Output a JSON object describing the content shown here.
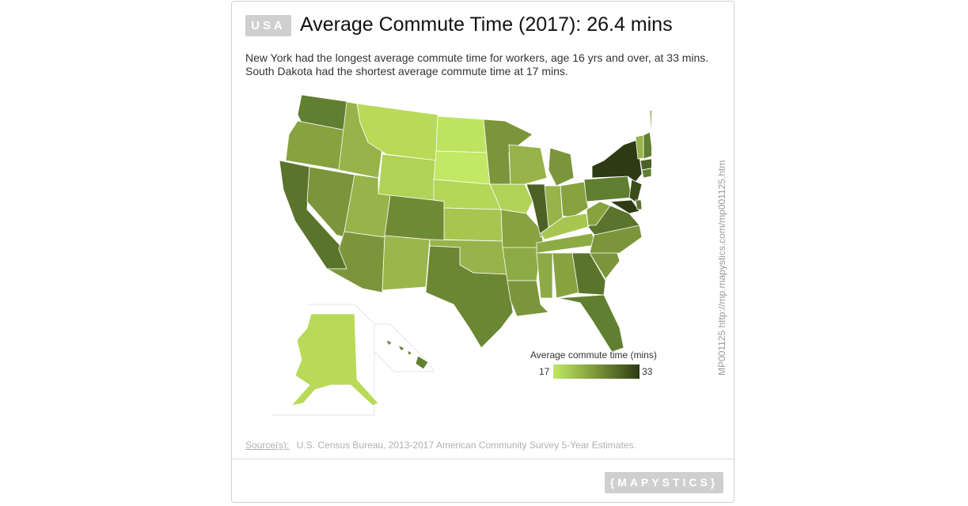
{
  "badge": "USA",
  "title": "Average Commute Time (2017): 26.4 mins",
  "subtitle_line1": "New York had the longest average commute time for workers, age 16 yrs and over, at 33 mins.",
  "subtitle_line2": "South Dakota had the shortest average commute time at 17 mins.",
  "vertical_text": "MP001125 http://mp.mapystics.com/mp001125.htm",
  "legend": {
    "title": "Average commute time (mins)",
    "min": "17",
    "max": "33",
    "color_min": "#c2e866",
    "color_max": "#2d3a13"
  },
  "source": {
    "label": "Source(s):",
    "text": "U.S. Census Bureau, 2013-2017 American Community Survey 5-Year Estimates."
  },
  "logo": "{MAPYSTICS}",
  "map_data": {
    "units": "mins",
    "states": {
      "New York": 33,
      "South Dakota": 17
    }
  }
}
